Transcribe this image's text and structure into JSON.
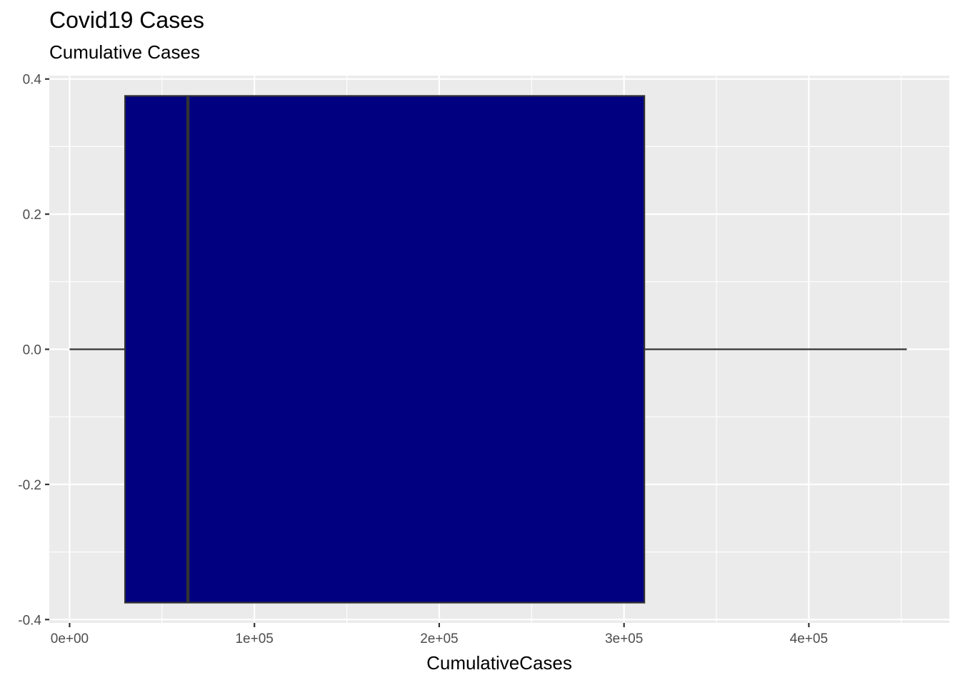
{
  "chart_data": {
    "type": "boxplot",
    "title": "Covid19 Cases",
    "subtitle": "Cumulative Cases",
    "xlabel": "CumulativeCases",
    "ylabel": "",
    "orientation": "horizontal",
    "xlim": [
      -11000,
      476000
    ],
    "ylim": [
      -0.405,
      0.405
    ],
    "x_ticks": [
      0,
      100000,
      200000,
      300000,
      400000
    ],
    "x_tick_labels": [
      "0e+00",
      "1e+05",
      "2e+05",
      "3e+05",
      "4e+05"
    ],
    "y_ticks": [
      -0.4,
      -0.2,
      0.0,
      0.2,
      0.4
    ],
    "y_tick_labels": [
      "-0.4",
      "-0.2",
      "0.0",
      "0.2",
      "0.4"
    ],
    "box": {
      "min": 0,
      "q1": 30000,
      "median": 64000,
      "q3": 311000,
      "max": 453000,
      "y_center": 0,
      "half_height": 0.375
    },
    "box_fill": "#000080",
    "box_line_color": "#333333",
    "panel_background": "#ebebeb",
    "grid_color": "#ffffff",
    "grid": true,
    "legend": "none"
  }
}
